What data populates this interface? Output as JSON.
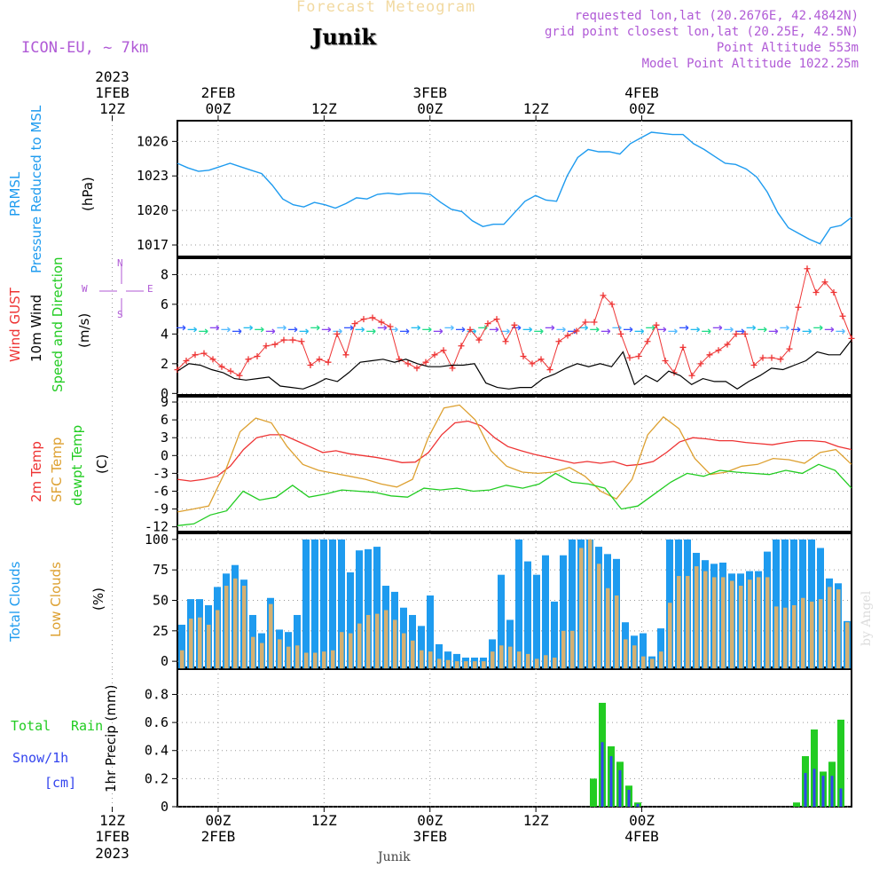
{
  "header": {
    "subtitle": "Forecast Meteogram",
    "location": "Junik",
    "model": "ICON-EU, ~ 7km",
    "requested": "requested lon,lat (20.2676E, 42.4842N)",
    "gridpoint": "grid point closest lon,lat (20.25E, 42.5N)",
    "point_altitude": "Point Altitude 553m",
    "model_altitude": "Model Point Altitude 1022.25m"
  },
  "footer": {
    "location": "Junik",
    "credit": "by Angel"
  },
  "time_axis": {
    "n_steps": 66,
    "top_ticks": [
      {
        "step": 9,
        "hour": "12Z",
        "day": "1FEB",
        "year": "2023"
      },
      {
        "step": 21,
        "hour": "00Z",
        "day": "2FEB",
        "year": ""
      },
      {
        "step": 33,
        "hour": "12Z",
        "day": "",
        "year": ""
      },
      {
        "step": 45,
        "hour": "00Z",
        "day": "3FEB",
        "year": ""
      },
      {
        "step": 57,
        "hour": "12Z",
        "day": "",
        "year": ""
      },
      {
        "step": 69,
        "hour": "00Z",
        "day": "4FEB",
        "year": ""
      }
    ],
    "bottom_ticks": [
      {
        "step": 9,
        "hour": "12Z",
        "day": "1FEB",
        "year": "2023"
      },
      {
        "step": 21,
        "hour": "00Z",
        "day": "2FEB",
        "year": ""
      },
      {
        "step": 33,
        "hour": "12Z",
        "day": "",
        "year": ""
      },
      {
        "step": 45,
        "hour": "00Z",
        "day": "3FEB",
        "year": ""
      },
      {
        "step": 57,
        "hour": "12Z",
        "day": "",
        "year": ""
      },
      {
        "step": 69,
        "hour": "00Z",
        "day": "4FEB",
        "year": ""
      }
    ]
  },
  "panels": {
    "pressure": {
      "labels": [
        "PRMSL",
        "Pressure Reduced to MSL"
      ],
      "unit": "(hPa)",
      "ticks": [
        "1026",
        "1023",
        "1020",
        "1017"
      ]
    },
    "wind": {
      "labels": [
        "Wind GUST",
        "10m Wind",
        "Speed and Direction"
      ],
      "unit": "(m/s)",
      "compass": {
        "w": "W",
        "e": "E",
        "n": "N",
        "s": "S"
      },
      "ticks": [
        "8",
        "6",
        "4",
        "2",
        "0"
      ]
    },
    "temp": {
      "labels": [
        "2m Temp",
        "SFC Temp",
        "dewpt Temp"
      ],
      "unit": "(C)",
      "ticks": [
        "9",
        "6",
        "3",
        "0",
        "-3",
        "-6",
        "-9",
        "-12"
      ]
    },
    "cloud": {
      "labels": [
        "Total Clouds",
        "Low Clouds"
      ],
      "unit": "(%)",
      "ticks": [
        "100",
        "75",
        "50",
        "25",
        "0"
      ]
    },
    "precip": {
      "labels": [
        "Total",
        "Rain",
        "Snow/1h",
        "[cm]"
      ],
      "axis_title": "1hr Precip (mm)",
      "ticks": [
        "0.8",
        "0.6",
        "0.4",
        "0.2",
        "0"
      ]
    }
  },
  "chart_data": [
    {
      "type": "line",
      "title": "PRMSL Pressure Reduced to MSL",
      "ylabel": "(hPa)",
      "ylim": [
        1016,
        1027.8
      ],
      "series": [
        {
          "name": "PRMSL",
          "color": "#1e9bef",
          "values": [
            1024.1,
            1023.7,
            1023.4,
            1023.5,
            1023.8,
            1024.1,
            1023.8,
            1023.5,
            1023.2,
            1022.2,
            1021.0,
            1020.5,
            1020.3,
            1020.7,
            1020.5,
            1020.2,
            1020.6,
            1021.1,
            1021.0,
            1021.4,
            1021.5,
            1021.4,
            1021.5,
            1021.5,
            1021.4,
            1020.7,
            1020.1,
            1019.9,
            1019.1,
            1018.6,
            1018.8,
            1018.8,
            1019.8,
            1020.8,
            1021.3,
            1020.9,
            1020.8,
            1023.0,
            1024.6,
            1025.3,
            1025.1,
            1025.1,
            1024.9,
            1025.8,
            1026.3,
            1026.8,
            1026.7,
            1026.6,
            1026.6,
            1025.8,
            1025.3,
            1024.7,
            1024.1,
            1024.0,
            1023.6,
            1022.9,
            1021.6,
            1019.8,
            1018.5,
            1018.0,
            1017.5,
            1017.1,
            1018.5,
            1018.7,
            1019.4
          ]
        }
      ]
    },
    {
      "type": "line",
      "title": "Wind GUST / 10m Wind Speed and Direction",
      "ylabel": "(m/s)",
      "ylim": [
        -0.1,
        9.1
      ],
      "series": [
        {
          "name": "Wind GUST",
          "color": "#ee3333",
          "values": [
            1.6,
            2.2,
            2.6,
            2.7,
            2.3,
            1.8,
            1.5,
            1.2,
            2.3,
            2.5,
            3.2,
            3.3,
            3.6,
            3.6,
            3.5,
            1.9,
            2.3,
            2.1,
            4.0,
            2.6,
            4.7,
            5.0,
            5.1,
            4.8,
            4.5,
            2.3,
            2.0,
            1.7,
            2.1,
            2.6,
            2.9,
            1.7,
            3.2,
            4.3,
            3.6,
            4.7,
            5.0,
            3.5,
            4.6,
            2.5,
            2.0,
            2.3,
            1.6,
            3.5,
            3.9,
            4.2,
            4.8,
            4.8,
            6.6,
            6.0,
            4.0,
            2.4,
            2.5,
            3.5,
            4.6,
            2.2,
            1.4,
            3.1,
            1.2,
            2.0,
            2.6,
            2.9,
            3.3,
            4.0,
            4.0,
            1.9,
            2.4,
            2.4,
            2.3,
            3.0,
            5.8,
            8.4,
            6.8,
            7.5,
            6.8,
            5.2,
            3.7
          ]
        },
        {
          "name": "10m Wind",
          "color": "#000000",
          "values": [
            1.5,
            2.0,
            1.9,
            1.6,
            1.4,
            1.0,
            0.9,
            1.0,
            1.1,
            0.5,
            0.4,
            0.3,
            0.6,
            1.0,
            0.8,
            1.4,
            2.1,
            2.2,
            2.3,
            2.1,
            2.3,
            2.0,
            1.8,
            1.8,
            1.9,
            1.9,
            2.0,
            0.7,
            0.4,
            0.3,
            0.4,
            0.4,
            1.0,
            1.3,
            1.7,
            2.0,
            1.8,
            2.0,
            1.8,
            2.8,
            0.6,
            1.2,
            0.8,
            1.5,
            1.2,
            0.6,
            1.0,
            0.8,
            0.8,
            0.3,
            0.8,
            1.2,
            1.7,
            1.6,
            1.9,
            2.2,
            2.8,
            2.6,
            2.6,
            3.6
          ]
        }
      ]
    },
    {
      "type": "line",
      "title": "2m Temp / SFC Temp / dewpt Temp",
      "ylabel": "(C)",
      "ylim": [
        -12.8,
        9.9
      ],
      "series": [
        {
          "name": "2m Temp",
          "color": "#ee3333",
          "values": [
            -4.0,
            -4.3,
            -4.0,
            -3.5,
            -1.8,
            1.0,
            3.0,
            3.5,
            3.5,
            2.5,
            1.5,
            0.5,
            0.8,
            0.3,
            0.0,
            -0.3,
            -0.7,
            -1.2,
            -1.1,
            0.5,
            3.5,
            5.5,
            5.8,
            5.0,
            3.0,
            1.5,
            0.8,
            0.2,
            -0.3,
            -0.8,
            -1.3,
            -1.0,
            -1.3,
            -1.0,
            -1.7,
            -1.5,
            -1.0,
            0.5,
            2.3,
            3.0,
            2.8,
            2.5,
            2.5,
            2.2,
            2.0,
            1.8,
            2.2,
            2.5,
            2.5,
            2.3,
            1.5,
            1.0
          ]
        },
        {
          "name": "SFC Temp",
          "color": "#dda030",
          "values": [
            -9.5,
            -9.0,
            -8.5,
            -3.0,
            4.0,
            6.3,
            5.5,
            1.5,
            -1.5,
            -2.5,
            -3.0,
            -3.5,
            -4.0,
            -4.8,
            -5.3,
            -4.0,
            3.0,
            8.0,
            8.5,
            6.0,
            0.8,
            -1.8,
            -2.8,
            -3.0,
            -2.8,
            -2.0,
            -3.5,
            -6.0,
            -7.3,
            -4.0,
            3.5,
            6.5,
            4.5,
            -0.5,
            -3.2,
            -2.8,
            -1.8,
            -1.5,
            -0.5,
            -0.7,
            -1.3,
            0.5,
            1.0,
            -1.5
          ]
        },
        {
          "name": "dewpt Temp",
          "color": "#22cc22",
          "values": [
            -11.8,
            -11.5,
            -10.0,
            -9.3,
            -6.0,
            -7.5,
            -7.0,
            -5.0,
            -7.0,
            -6.5,
            -5.8,
            -6.0,
            -6.2,
            -6.8,
            -7.0,
            -5.5,
            -5.8,
            -5.5,
            -6.0,
            -5.8,
            -5.0,
            -5.5,
            -4.8,
            -3.0,
            -4.5,
            -4.8,
            -5.5,
            -9.0,
            -8.5,
            -6.5,
            -4.5,
            -3.0,
            -3.5,
            -2.5,
            -2.8,
            -3.0,
            -3.2,
            -2.5,
            -3.0,
            -1.5,
            -2.5,
            -5.5
          ]
        }
      ]
    },
    {
      "type": "bar",
      "title": "Total Clouds / Low Clouds",
      "ylabel": "(%)",
      "ylim": [
        -5,
        105
      ],
      "series": [
        {
          "name": "Total Clouds",
          "color": "#1e9bef",
          "values": [
            30,
            51,
            51,
            46,
            61,
            72,
            79,
            67,
            38,
            23,
            52,
            26,
            24,
            38,
            100,
            100,
            100,
            100,
            100,
            73,
            91,
            92,
            94,
            62,
            57,
            44,
            38,
            29,
            54,
            14,
            8,
            6,
            3,
            3,
            3,
            18,
            71,
            34,
            100,
            82,
            71,
            87,
            49,
            87,
            100,
            100,
            100,
            94,
            88,
            84,
            32,
            21,
            23,
            4,
            27,
            100,
            100,
            100,
            89,
            83,
            80,
            81,
            72,
            72,
            74,
            74,
            90,
            100,
            100,
            100,
            100,
            100,
            93,
            68,
            64,
            33
          ]
        },
        {
          "name": "Low Clouds",
          "color": "#d4b072",
          "values": [
            9,
            35,
            36,
            30,
            42,
            62,
            68,
            62,
            20,
            15,
            47,
            18,
            12,
            13,
            7,
            7,
            8,
            9,
            24,
            23,
            31,
            38,
            39,
            42,
            34,
            23,
            17,
            9,
            8,
            2,
            1,
            0,
            0,
            0,
            0,
            8,
            13,
            12,
            8,
            6,
            2,
            5,
            3,
            25,
            25,
            93,
            100,
            80,
            60,
            54,
            18,
            13,
            4,
            2,
            8,
            48,
            70,
            70,
            78,
            74,
            69,
            69,
            66,
            62,
            67,
            69,
            69,
            45,
            44,
            46,
            52,
            49,
            51,
            61,
            59,
            32
          ]
        }
      ]
    },
    {
      "type": "bar",
      "title": "1hr Precip (mm)",
      "ylabel": "1hr Precip (mm)",
      "ylim": [
        0,
        0.98
      ],
      "series": [
        {
          "name": "Total",
          "color": "#22cc22",
          "values": [
            0.2,
            0.74,
            0.43,
            0.32,
            0.15,
            0.03,
            0.03,
            0.36,
            0.55,
            0.25,
            0.32,
            0.62
          ]
        },
        {
          "name": "Snow/1h",
          "color": "#3344ee",
          "values": [
            0.0,
            0.46,
            0.36,
            0.26,
            0.12,
            0.02,
            0.0,
            0.24,
            0.27,
            0.22,
            0.22,
            0.13
          ]
        }
      ]
    }
  ]
}
